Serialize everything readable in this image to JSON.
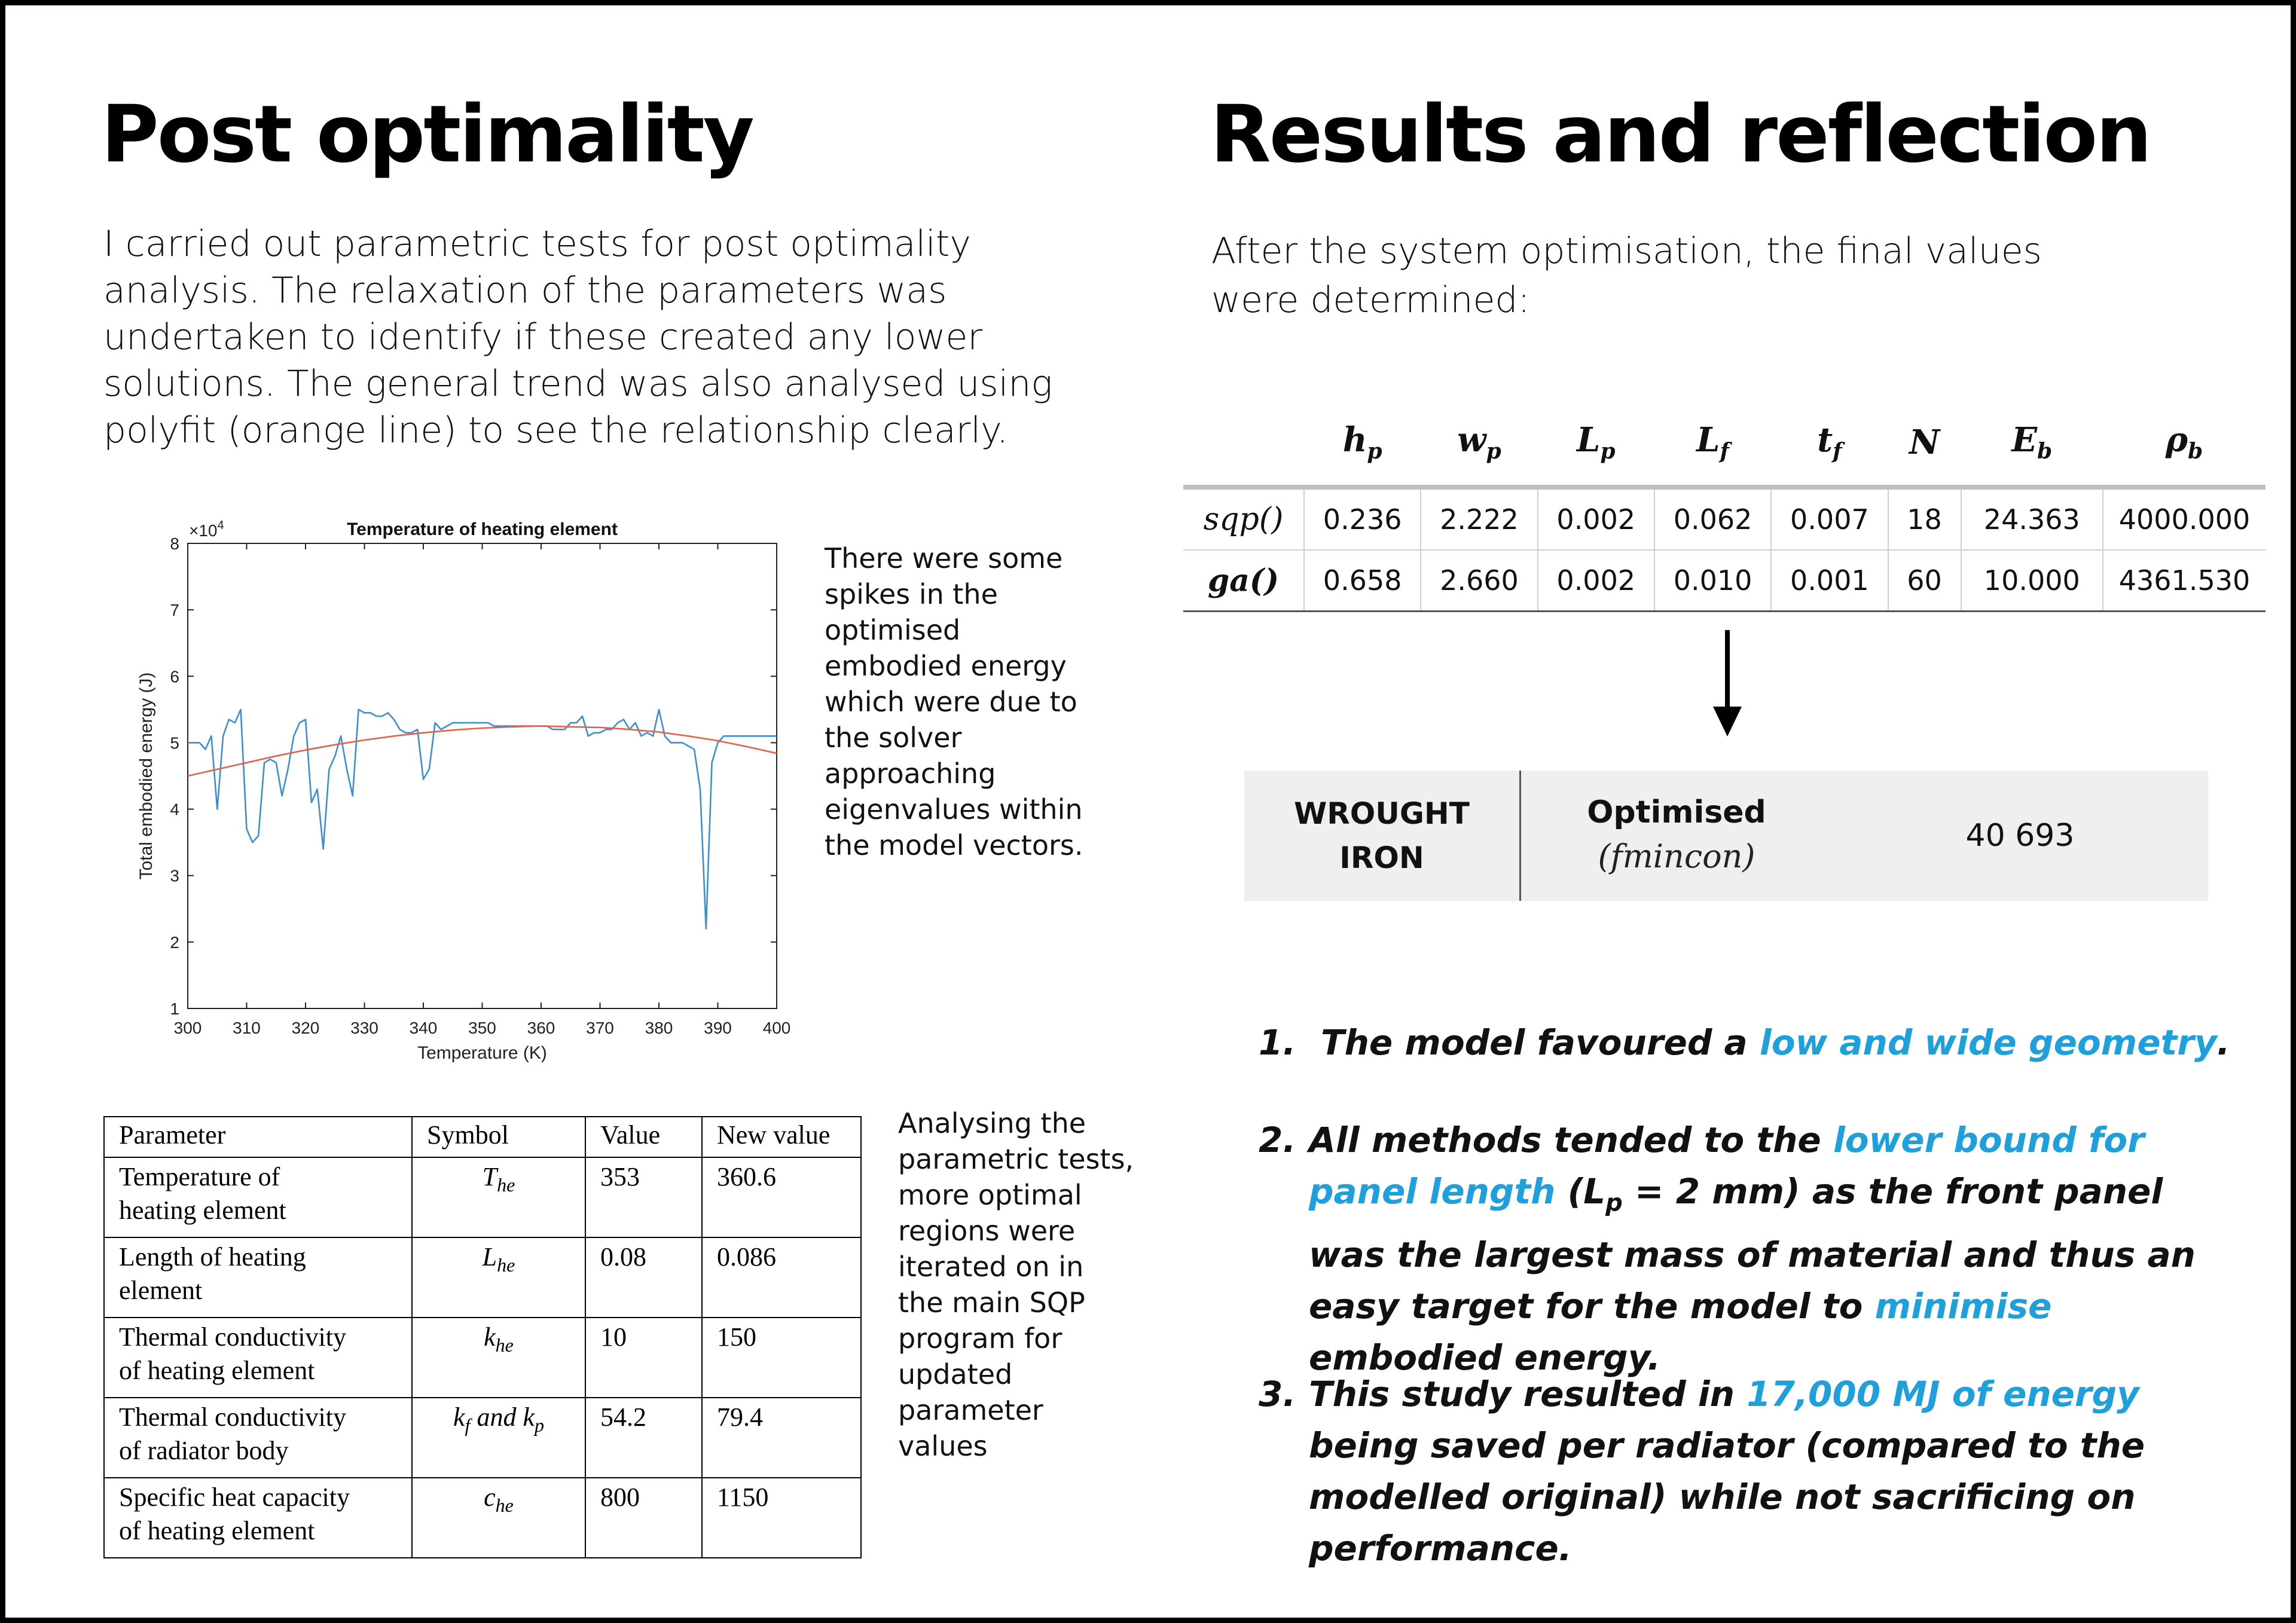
{
  "left": {
    "title": "Post optimality",
    "intro": "I carried out parametric tests for post optimality analysis. The relaxation of the parameters was undertaken to identify if these created any lower solutions. The general trend was also analysed using polyfit (orange line) to see the relationship clearly.",
    "chart_note": "There were some spikes in the optimised embodied energy which were due to the solver approaching eigenvalues within the model vectors.",
    "table_note": "Analysing the parametric tests, more optimal regions were iterated on in the main SQP program for updated parameter values"
  },
  "chart_data": {
    "type": "line",
    "title": "Temperature of heating element",
    "xlabel": "Temperature (K)",
    "ylabel": "Total embodied energy (J)",
    "y_multiplier_label": "×10",
    "y_multiplier_exp": "4",
    "xlim": [
      300,
      400
    ],
    "ylim": [
      1,
      8
    ],
    "xticks": [
      "300",
      "310",
      "320",
      "330",
      "340",
      "350",
      "360",
      "370",
      "380",
      "390",
      "400"
    ],
    "yticks": [
      "1",
      "2",
      "3",
      "4",
      "5",
      "6",
      "7",
      "8"
    ],
    "grid": false,
    "colors": {
      "data": "#3d8fd1",
      "fit": "#e5624a"
    },
    "series": [
      {
        "x": [
          300,
          301,
          302,
          303,
          304,
          305,
          306,
          307,
          308,
          309,
          310,
          311,
          312,
          313,
          314,
          315,
          316,
          317,
          318,
          319,
          320,
          321,
          322,
          323,
          324,
          325,
          326,
          327,
          328,
          329,
          330,
          331,
          332,
          333,
          334,
          335,
          336,
          337,
          338,
          339,
          340,
          341,
          342,
          343,
          344,
          345,
          346,
          347,
          348,
          349,
          350,
          351,
          352,
          353,
          354,
          355,
          356,
          357,
          358,
          359,
          360,
          361,
          362,
          363,
          364,
          365,
          366,
          367,
          368,
          369,
          370,
          371,
          372,
          373,
          374,
          375,
          376,
          377,
          378,
          379,
          380,
          381,
          382,
          383,
          384,
          385,
          386,
          387,
          388,
          389,
          390,
          391,
          392,
          393,
          394,
          395,
          396,
          397,
          398,
          399,
          400
        ],
        "y": [
          5.0,
          5.0,
          5.0,
          4.9,
          5.1,
          4.0,
          5.1,
          5.35,
          5.3,
          5.5,
          3.7,
          3.5,
          3.6,
          4.7,
          4.75,
          4.7,
          4.2,
          4.6,
          5.1,
          5.3,
          5.35,
          4.1,
          4.3,
          3.4,
          4.6,
          4.8,
          5.1,
          4.6,
          4.2,
          5.5,
          5.45,
          5.45,
          5.4,
          5.4,
          5.45,
          5.35,
          5.2,
          5.15,
          5.15,
          5.2,
          4.45,
          4.6,
          5.3,
          5.2,
          5.25,
          5.3,
          5.3,
          5.3,
          5.3,
          5.3,
          5.3,
          5.3,
          5.25,
          5.25,
          5.25,
          5.25,
          5.25,
          5.25,
          5.25,
          5.25,
          5.25,
          5.25,
          5.2,
          5.2,
          5.2,
          5.3,
          5.3,
          5.4,
          5.1,
          5.15,
          5.15,
          5.2,
          5.2,
          5.3,
          5.35,
          5.2,
          5.3,
          5.1,
          5.15,
          5.1,
          5.5,
          5.1,
          5.0,
          5.0,
          5.0,
          4.95,
          4.9,
          4.3,
          2.2,
          4.7,
          5.0,
          5.1,
          5.1,
          5.1,
          5.1,
          5.1,
          5.1,
          5.1,
          5.1,
          5.1,
          5.1
        ]
      },
      {
        "x": [
          300,
          305,
          310,
          315,
          320,
          325,
          330,
          335,
          340,
          345,
          350,
          355,
          360,
          365,
          370,
          375,
          380,
          385,
          390,
          395,
          400
        ],
        "y": [
          4.5,
          4.6,
          4.7,
          4.8,
          4.89,
          4.97,
          5.04,
          5.1,
          5.15,
          5.19,
          5.22,
          5.24,
          5.25,
          5.24,
          5.23,
          5.2,
          5.16,
          5.1,
          5.03,
          4.94,
          4.84
        ]
      }
    ]
  },
  "param_table": {
    "headers": [
      "Parameter",
      "Symbol",
      "Value",
      "New value"
    ],
    "rows": [
      {
        "name_l1": "Temperature of",
        "name_l2": "heating element",
        "sym_base": "T",
        "sym_sub": "he",
        "value": "353",
        "new_value": "360.6"
      },
      {
        "name_l1": "Length of heating",
        "name_l2": "element",
        "sym_base": "L",
        "sym_sub": "he",
        "value": "0.08",
        "new_value": "0.086"
      },
      {
        "name_l1": "Thermal conductivity",
        "name_l2": "of heating element",
        "sym_base": "k",
        "sym_sub": "he",
        "value": "10",
        "new_value": "150"
      },
      {
        "name_l1": "Thermal conductivity",
        "name_l2": "of radiator body",
        "sym_b1": "k",
        "sym_s1": "f",
        "sym_mid": " and ",
        "sym_b2": "k",
        "sym_s2": "p",
        "value": "54.2",
        "new_value": "79.4"
      },
      {
        "name_l1": "Specific heat capacity",
        "name_l2": "of heating element",
        "sym_base": "c",
        "sym_sub": "he",
        "value": "800",
        "new_value": "1150"
      }
    ]
  },
  "right": {
    "title": "Results and reflection",
    "intro": "After the system optimisation, the final values were determined:",
    "results_table": {
      "headers": [
        {
          "base": "h",
          "sub": "p"
        },
        {
          "base": "w",
          "sub": "p"
        },
        {
          "base": "L",
          "sub": "p"
        },
        {
          "base": "L",
          "sub": "f"
        },
        {
          "base": "t",
          "sub": "f"
        },
        {
          "base": "N",
          "sub": ""
        },
        {
          "base": "E",
          "sub": "b"
        },
        {
          "base": "ρ",
          "sub": "b"
        }
      ],
      "rows": [
        {
          "method": "sqp()",
          "values": [
            "0.236",
            "2.222",
            "0.002",
            "0.062",
            "0.007",
            "18",
            "24.363",
            "4000.000"
          ]
        },
        {
          "method": "ga()",
          "values": [
            "0.658",
            "2.660",
            "0.002",
            "0.010",
            "0.001",
            "60",
            "10.000",
            "4361.530"
          ]
        }
      ]
    },
    "summary": {
      "material_l1": "WROUGHT",
      "material_l2": "IRON",
      "label": "Optimised",
      "method": "(fmincon)",
      "value": "40 693"
    },
    "findings": [
      {
        "num": "1.",
        "p1": "The model favoured a ",
        "h1": "low and wide geometry",
        "p2": "."
      },
      {
        "num": "2.",
        "p1": "All methods tended to the ",
        "h1": "lower bound for panel length",
        "p2": " (L",
        "sub": "p",
        "p3": " = 2 mm) as the front panel was the largest mass of material and thus an easy target for the model to ",
        "h2": "minimise",
        "p4": " embodied energy."
      },
      {
        "num": "3.",
        "p1": "This study resulted in ",
        "h1": "17,000 MJ of energy",
        "p2": " being saved per radiator (compared to the modelled original) while not sacrificing on performance."
      }
    ]
  }
}
